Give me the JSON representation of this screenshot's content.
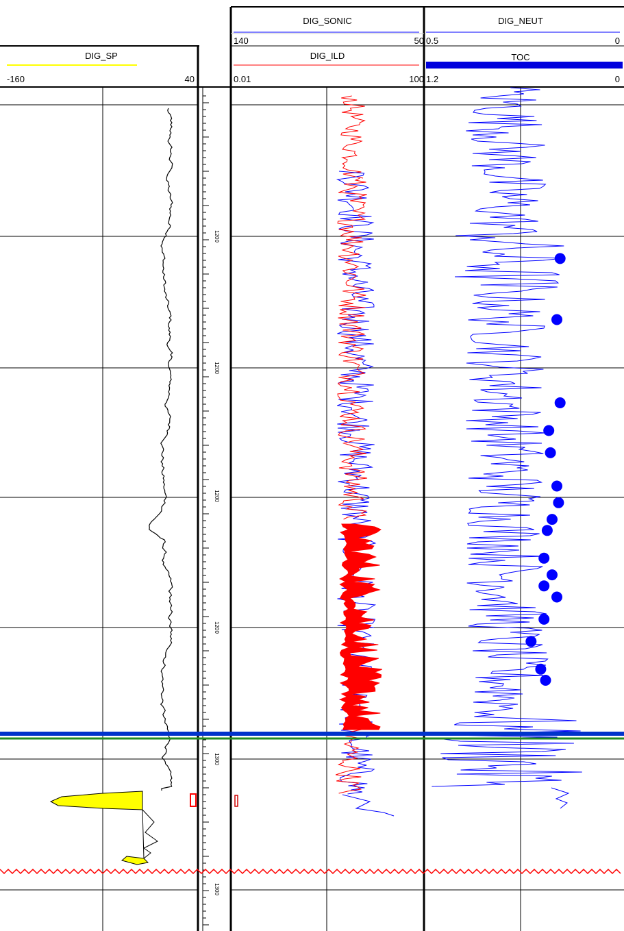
{
  "chart_data": {
    "type": "well_log",
    "tracks": [
      {
        "id": "sp",
        "curves": [
          {
            "name": "DIG_SP",
            "min_label": "-160",
            "max_label": "40",
            "color": "#ffff00"
          }
        ]
      },
      {
        "id": "depth",
        "depth_labels": [
          "1200",
          "1200",
          "1200",
          "1200",
          "1300",
          "1300"
        ]
      },
      {
        "id": "sonic_ild",
        "curves": [
          {
            "name": "DIG_SONIC",
            "min_label": "140",
            "max_label": "50",
            "color": "#0000ff"
          },
          {
            "name": "DIG_ILD",
            "min_label": "0.01",
            "max_label": "100",
            "color": "#ff0000"
          }
        ]
      },
      {
        "id": "neut_toc",
        "curves": [
          {
            "name": "DIG_NEUT",
            "min_label": "0.5",
            "max_label": "0",
            "color": "#0000ff"
          },
          {
            "name": "TOC",
            "min_label": "1.2",
            "max_label": "0",
            "color": "#0000ff"
          }
        ]
      }
    ],
    "toc_points": [
      [
        0.37,
        0.04
      ],
      [
        0.39,
        0.15
      ],
      [
        0.37,
        0.3
      ],
      [
        0.44,
        0.35
      ],
      [
        0.43,
        0.39
      ],
      [
        0.39,
        0.45
      ],
      [
        0.38,
        0.48
      ],
      [
        0.42,
        0.51
      ],
      [
        0.45,
        0.53
      ],
      [
        0.47,
        0.58
      ],
      [
        0.42,
        0.61
      ],
      [
        0.47,
        0.63
      ],
      [
        0.39,
        0.65
      ],
      [
        0.47,
        0.69
      ],
      [
        0.55,
        0.73
      ],
      [
        0.49,
        0.78
      ],
      [
        0.46,
        0.8
      ]
    ],
    "colors": {
      "grid": "#000000",
      "sp_curve": "#000000",
      "sp_fill": "#ffff00",
      "ild": "#ff0000",
      "sonic": "#0000ff",
      "neut": "#0000ff",
      "toc": "#0000ff",
      "marker_blue": "#0033cc",
      "marker_green": "#228b22",
      "unconformity": "#ff0000"
    }
  }
}
